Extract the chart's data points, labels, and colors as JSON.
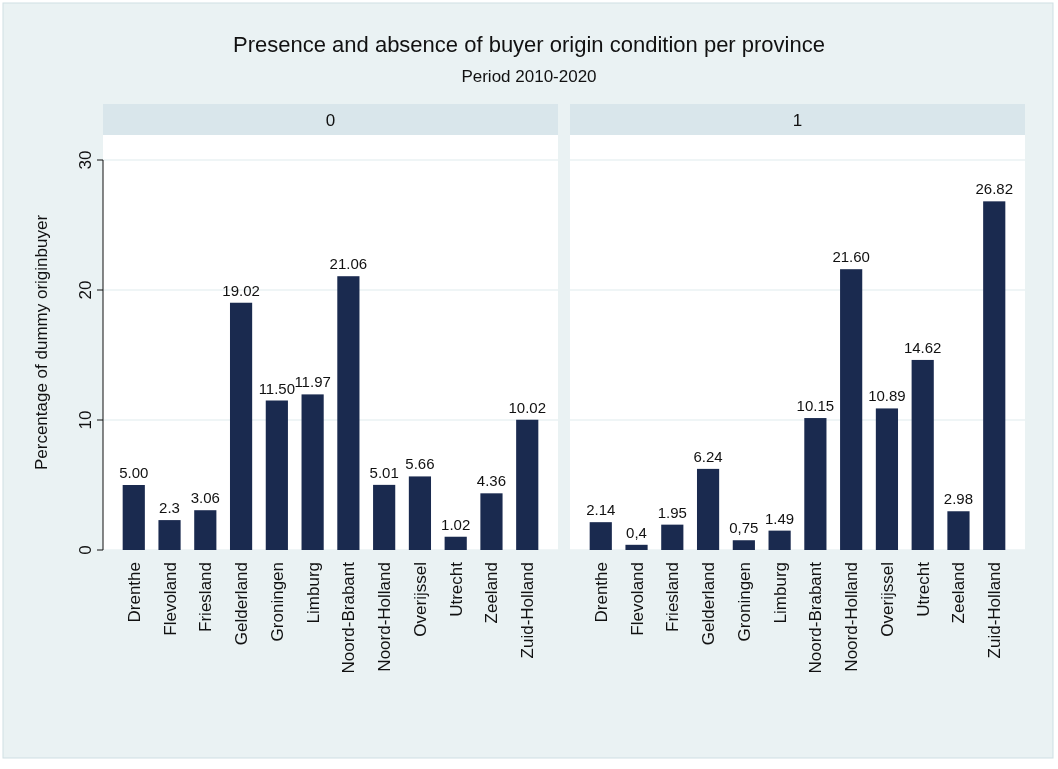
{
  "chart_data": [
    {
      "type": "bar",
      "title": "0",
      "annotations": [
        "Presence and absence of buyer origin condition per province",
        "Period 2010-2020"
      ],
      "ylabel": "Percentage of dummy originbuyer",
      "categories": [
        "Drenthe",
        "Flevoland",
        "Friesland",
        "Gelderland",
        "Groningen",
        "Limburg",
        "Noord-Brabant",
        "Noord-Holland",
        "Overijssel",
        "Utrecht",
        "Zeeland",
        "Zuid-Holland"
      ],
      "values": [
        5.0,
        2.3,
        3.06,
        19.02,
        11.5,
        11.97,
        21.06,
        5.01,
        5.66,
        1.02,
        4.36,
        10.02
      ],
      "value_labels": [
        "5.00",
        "2.3",
        "3.06",
        "19.02",
        "11.50",
        "11.97",
        "21.06",
        "5.01",
        "5.66",
        "1.02",
        "4.36",
        "10.02"
      ],
      "color": "#1a2a4f",
      "ylim": [
        0,
        30
      ],
      "yticks": [
        0,
        10,
        20,
        30
      ],
      "grid": "y"
    },
    {
      "type": "bar",
      "title": "1",
      "categories": [
        "Drenthe",
        "Flevoland",
        "Friesland",
        "Gelderland",
        "Groningen",
        "Limburg",
        "Noord-Brabant",
        "Noord-Holland",
        "Overijssel",
        "Utrecht",
        "Zeeland",
        "Zuid-Holland"
      ],
      "values": [
        2.14,
        0.4,
        1.95,
        6.24,
        0.75,
        1.49,
        10.15,
        21.6,
        10.89,
        14.62,
        2.98,
        26.82
      ],
      "value_labels": [
        "2.14",
        "0,4",
        "1.95",
        "6.24",
        "0,75",
        "1.49",
        "10.15",
        "21.60",
        "10.89",
        "14.62",
        "2.98",
        "26.82"
      ],
      "color": "#1a2a4f",
      "ylim": [
        0,
        30
      ],
      "yticks": [
        0,
        10,
        20,
        30
      ],
      "grid": "y",
      "tick_labels": "x"
    }
  ]
}
